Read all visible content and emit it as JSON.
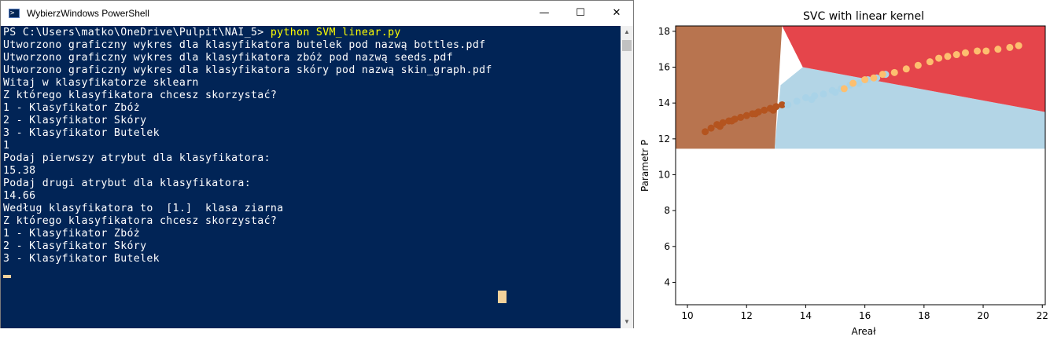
{
  "window": {
    "title": "WybierzWindows PowerShell",
    "buttons": {
      "minimize": "—",
      "maximize": "☐",
      "close": "✕"
    }
  },
  "console": {
    "prompt": "PS C:\\Users\\matko\\OneDrive\\Pulpit\\NAI_5> ",
    "command": "python SVM_linear.py",
    "lines": [
      "Utworzono graficzny wykres dla klasyfikatora butelek pod nazwą bottles.pdf",
      "Utworzono graficzny wykres dla klasyfikatora zbóż pod nazwą seeds.pdf",
      "Utworzono graficzny wykres dla klasyfikatora skóry pod nazwą skin_graph.pdf",
      "Witaj w klasyfikatorze sklearn",
      "Z którego klasyfikatora chcesz skorzystać?",
      "1 - Klasyfikator Zbóż",
      "2 - Klasyfikator Skóry",
      "3 - Klasyfikator Butelek",
      "1",
      "Podaj pierwszy atrybut dla klasyfikatora:",
      "15.38",
      "Podaj drugi atrybut dla klasyfikatora:",
      "14.66",
      "Według klasyfikatora to  [1.]  klasa ziarna",
      "Z którego klasyfikatora chcesz skorzystać?",
      "1 - Klasyfikator Zbóż",
      "2 - Klasyfikator Skóry",
      "3 - Klasyfikator Butelek"
    ],
    "background": "#012456",
    "text_color": "#ffffff",
    "command_color": "#ffff00"
  },
  "chart_data": {
    "type": "scatter",
    "title": "SVC with linear kernel",
    "xlabel": "Areał",
    "ylabel": "Parametr P",
    "xlim": [
      9.6,
      22.1
    ],
    "ylim": [
      2.75,
      18.3
    ],
    "xticks": [
      10,
      12,
      14,
      16,
      18,
      20,
      22
    ],
    "yticks": [
      4,
      6,
      8,
      10,
      12,
      14,
      16,
      18
    ],
    "decision_regions": [
      {
        "class": 0,
        "color": "#b8744f",
        "polygon": [
          [
            9.6,
            11.45
          ],
          [
            9.6,
            18.3
          ],
          [
            13.2,
            18.3
          ],
          [
            12.95,
            11.45
          ]
        ]
      },
      {
        "class": 1,
        "color": "#b3d5e6",
        "polygon": [
          [
            12.95,
            11.45
          ],
          [
            13.15,
            15.0
          ],
          [
            13.9,
            16.0
          ],
          [
            22.1,
            13.5
          ],
          [
            22.1,
            11.45
          ]
        ]
      },
      {
        "class": 2,
        "color": "#e5454b",
        "polygon": [
          [
            13.2,
            18.3
          ],
          [
            22.1,
            18.3
          ],
          [
            22.1,
            13.5
          ],
          [
            13.9,
            16.0
          ]
        ]
      }
    ],
    "series": [
      {
        "class": 0,
        "color": "#b4541f",
        "x": [
          10.6,
          10.8,
          11.0,
          11.2,
          11.4,
          11.6,
          11.8,
          12.0,
          12.2,
          12.4,
          12.6,
          12.8,
          13.0,
          13.2,
          11.1,
          11.5,
          12.3,
          12.9
        ],
        "y": [
          12.4,
          12.6,
          12.8,
          12.9,
          13.0,
          13.1,
          13.2,
          13.3,
          13.4,
          13.5,
          13.6,
          13.7,
          13.8,
          13.9,
          12.7,
          13.0,
          13.4,
          13.6
        ]
      },
      {
        "class": 1,
        "color": "#a9d3e8",
        "x": [
          13.4,
          13.7,
          14.0,
          14.3,
          14.6,
          14.9,
          15.2,
          15.5,
          15.8,
          16.1,
          16.4,
          16.7,
          14.2,
          15.0
        ],
        "y": [
          13.9,
          14.1,
          14.3,
          14.4,
          14.5,
          14.7,
          14.8,
          15.0,
          15.1,
          15.3,
          15.4,
          15.6,
          14.2,
          14.6
        ]
      },
      {
        "class": 2,
        "color": "#fdbf6f",
        "x": [
          15.3,
          15.6,
          16.0,
          16.3,
          16.6,
          17.0,
          17.4,
          17.8,
          18.2,
          18.5,
          18.8,
          19.1,
          19.4,
          19.8,
          20.1,
          20.5,
          20.9,
          21.2
        ],
        "y": [
          14.8,
          15.1,
          15.3,
          15.4,
          15.6,
          15.7,
          15.9,
          16.1,
          16.3,
          16.5,
          16.6,
          16.7,
          16.8,
          16.9,
          16.9,
          17.0,
          17.1,
          17.2
        ]
      }
    ],
    "grid": false,
    "legend": "none"
  }
}
